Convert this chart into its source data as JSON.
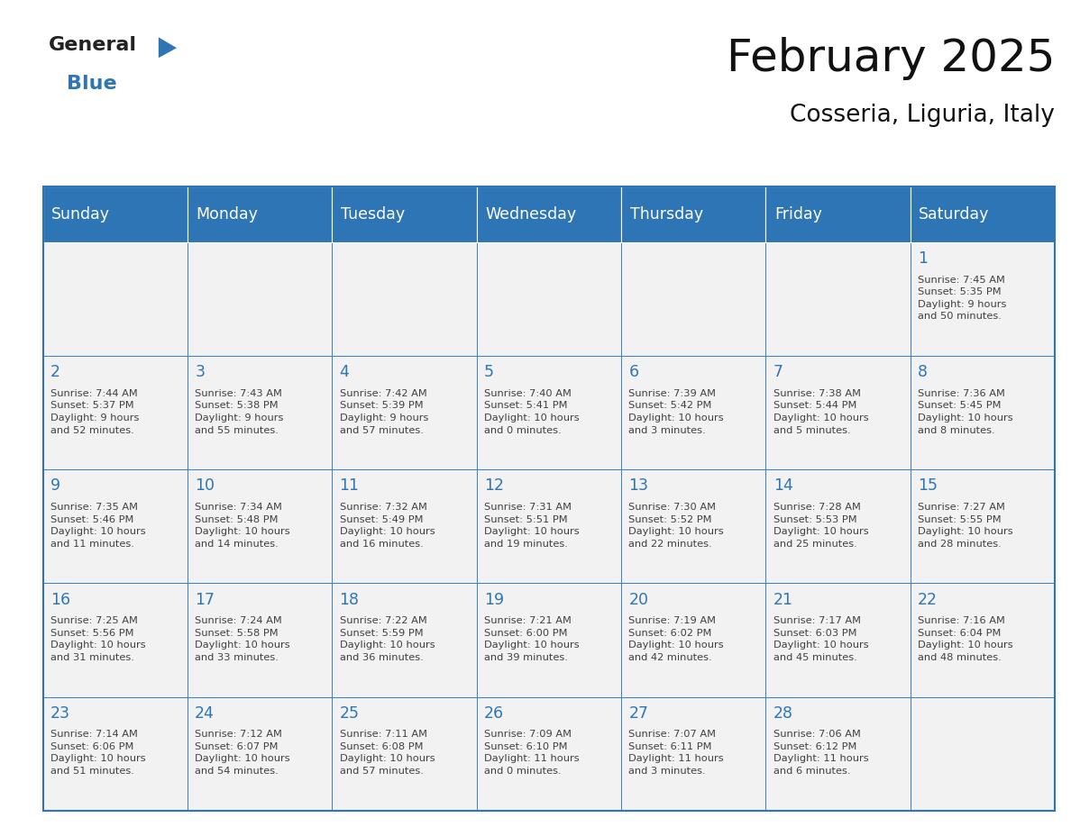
{
  "title": "February 2025",
  "subtitle": "Cosseria, Liguria, Italy",
  "header_bg": "#2E75B6",
  "header_text_color": "#FFFFFF",
  "cell_bg": "#F2F2F2",
  "day_number_color": "#2E75B6",
  "text_color": "#404040",
  "border_color": "#2E75B6",
  "days_of_week": [
    "Sunday",
    "Monday",
    "Tuesday",
    "Wednesday",
    "Thursday",
    "Friday",
    "Saturday"
  ],
  "weeks": [
    [
      {
        "day": null,
        "info": null
      },
      {
        "day": null,
        "info": null
      },
      {
        "day": null,
        "info": null
      },
      {
        "day": null,
        "info": null
      },
      {
        "day": null,
        "info": null
      },
      {
        "day": null,
        "info": null
      },
      {
        "day": "1",
        "info": "Sunrise: 7:45 AM\nSunset: 5:35 PM\nDaylight: 9 hours\nand 50 minutes."
      }
    ],
    [
      {
        "day": "2",
        "info": "Sunrise: 7:44 AM\nSunset: 5:37 PM\nDaylight: 9 hours\nand 52 minutes."
      },
      {
        "day": "3",
        "info": "Sunrise: 7:43 AM\nSunset: 5:38 PM\nDaylight: 9 hours\nand 55 minutes."
      },
      {
        "day": "4",
        "info": "Sunrise: 7:42 AM\nSunset: 5:39 PM\nDaylight: 9 hours\nand 57 minutes."
      },
      {
        "day": "5",
        "info": "Sunrise: 7:40 AM\nSunset: 5:41 PM\nDaylight: 10 hours\nand 0 minutes."
      },
      {
        "day": "6",
        "info": "Sunrise: 7:39 AM\nSunset: 5:42 PM\nDaylight: 10 hours\nand 3 minutes."
      },
      {
        "day": "7",
        "info": "Sunrise: 7:38 AM\nSunset: 5:44 PM\nDaylight: 10 hours\nand 5 minutes."
      },
      {
        "day": "8",
        "info": "Sunrise: 7:36 AM\nSunset: 5:45 PM\nDaylight: 10 hours\nand 8 minutes."
      }
    ],
    [
      {
        "day": "9",
        "info": "Sunrise: 7:35 AM\nSunset: 5:46 PM\nDaylight: 10 hours\nand 11 minutes."
      },
      {
        "day": "10",
        "info": "Sunrise: 7:34 AM\nSunset: 5:48 PM\nDaylight: 10 hours\nand 14 minutes."
      },
      {
        "day": "11",
        "info": "Sunrise: 7:32 AM\nSunset: 5:49 PM\nDaylight: 10 hours\nand 16 minutes."
      },
      {
        "day": "12",
        "info": "Sunrise: 7:31 AM\nSunset: 5:51 PM\nDaylight: 10 hours\nand 19 minutes."
      },
      {
        "day": "13",
        "info": "Sunrise: 7:30 AM\nSunset: 5:52 PM\nDaylight: 10 hours\nand 22 minutes."
      },
      {
        "day": "14",
        "info": "Sunrise: 7:28 AM\nSunset: 5:53 PM\nDaylight: 10 hours\nand 25 minutes."
      },
      {
        "day": "15",
        "info": "Sunrise: 7:27 AM\nSunset: 5:55 PM\nDaylight: 10 hours\nand 28 minutes."
      }
    ],
    [
      {
        "day": "16",
        "info": "Sunrise: 7:25 AM\nSunset: 5:56 PM\nDaylight: 10 hours\nand 31 minutes."
      },
      {
        "day": "17",
        "info": "Sunrise: 7:24 AM\nSunset: 5:58 PM\nDaylight: 10 hours\nand 33 minutes."
      },
      {
        "day": "18",
        "info": "Sunrise: 7:22 AM\nSunset: 5:59 PM\nDaylight: 10 hours\nand 36 minutes."
      },
      {
        "day": "19",
        "info": "Sunrise: 7:21 AM\nSunset: 6:00 PM\nDaylight: 10 hours\nand 39 minutes."
      },
      {
        "day": "20",
        "info": "Sunrise: 7:19 AM\nSunset: 6:02 PM\nDaylight: 10 hours\nand 42 minutes."
      },
      {
        "day": "21",
        "info": "Sunrise: 7:17 AM\nSunset: 6:03 PM\nDaylight: 10 hours\nand 45 minutes."
      },
      {
        "day": "22",
        "info": "Sunrise: 7:16 AM\nSunset: 6:04 PM\nDaylight: 10 hours\nand 48 minutes."
      }
    ],
    [
      {
        "day": "23",
        "info": "Sunrise: 7:14 AM\nSunset: 6:06 PM\nDaylight: 10 hours\nand 51 minutes."
      },
      {
        "day": "24",
        "info": "Sunrise: 7:12 AM\nSunset: 6:07 PM\nDaylight: 10 hours\nand 54 minutes."
      },
      {
        "day": "25",
        "info": "Sunrise: 7:11 AM\nSunset: 6:08 PM\nDaylight: 10 hours\nand 57 minutes."
      },
      {
        "day": "26",
        "info": "Sunrise: 7:09 AM\nSunset: 6:10 PM\nDaylight: 11 hours\nand 0 minutes."
      },
      {
        "day": "27",
        "info": "Sunrise: 7:07 AM\nSunset: 6:11 PM\nDaylight: 11 hours\nand 3 minutes."
      },
      {
        "day": "28",
        "info": "Sunrise: 7:06 AM\nSunset: 6:12 PM\nDaylight: 11 hours\nand 6 minutes."
      },
      {
        "day": null,
        "info": null
      }
    ]
  ],
  "logo_general_color": "#222222",
  "logo_blue_color": "#2E75B6",
  "logo_triangle_color": "#2E75B6"
}
